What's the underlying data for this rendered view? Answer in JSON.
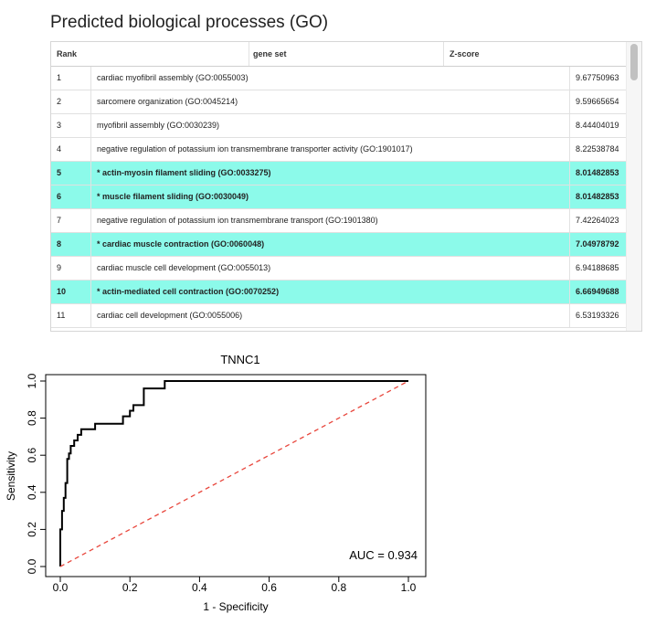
{
  "page": {
    "title": "Predicted biological processes (GO)"
  },
  "table": {
    "columns": [
      "Rank",
      "gene set",
      "Z-score"
    ],
    "rows": [
      {
        "rank": "1",
        "gene_set": "cardiac myofibril assembly (GO:0055003)",
        "z": "9.67750963",
        "highlight": false
      },
      {
        "rank": "2",
        "gene_set": "sarcomere organization (GO:0045214)",
        "z": "9.59665654",
        "highlight": false
      },
      {
        "rank": "3",
        "gene_set": "myofibril assembly (GO:0030239)",
        "z": "8.44404019",
        "highlight": false
      },
      {
        "rank": "4",
        "gene_set": "negative regulation of potassium ion transmembrane transporter activity (GO:1901017)",
        "z": "8.22538784",
        "highlight": false
      },
      {
        "rank": "5",
        "gene_set": "* actin-myosin filament sliding (GO:0033275)",
        "z": "8.01482853",
        "highlight": true
      },
      {
        "rank": "6",
        "gene_set": "* muscle filament sliding (GO:0030049)",
        "z": "8.01482853",
        "highlight": true
      },
      {
        "rank": "7",
        "gene_set": "negative regulation of potassium ion transmembrane transport (GO:1901380)",
        "z": "7.42264023",
        "highlight": false
      },
      {
        "rank": "8",
        "gene_set": "* cardiac muscle contraction (GO:0060048)",
        "z": "7.04978792",
        "highlight": true
      },
      {
        "rank": "9",
        "gene_set": "cardiac muscle cell development (GO:0055013)",
        "z": "6.94188685",
        "highlight": false
      },
      {
        "rank": "10",
        "gene_set": "* actin-mediated cell contraction (GO:0070252)",
        "z": "6.66949688",
        "highlight": true
      },
      {
        "rank": "11",
        "gene_set": "cardiac cell development (GO:0055006)",
        "z": "6.53193326",
        "highlight": false
      }
    ],
    "highlight_color": "#8cfaea"
  },
  "chart_data": {
    "type": "line",
    "title": "TNNC1",
    "xlabel": "1 - Specificity",
    "ylabel": "Sensitivity",
    "xlim": [
      0,
      1
    ],
    "ylim": [
      0,
      1
    ],
    "xticks": [
      "0.0",
      "0.2",
      "0.4",
      "0.6",
      "0.8",
      "1.0"
    ],
    "yticks": [
      "0.0",
      "0.2",
      "0.4",
      "0.6",
      "0.8",
      "1.0"
    ],
    "annotation": "AUC = 0.934",
    "series": [
      {
        "color": "#000000",
        "x": [
          0.0,
          0.0,
          0.005,
          0.005,
          0.01,
          0.01,
          0.015,
          0.015,
          0.02,
          0.02,
          0.025,
          0.025,
          0.03,
          0.03,
          0.04,
          0.04,
          0.05,
          0.05,
          0.06,
          0.06,
          0.1,
          0.1,
          0.18,
          0.18,
          0.2,
          0.2,
          0.21,
          0.21,
          0.24,
          0.24,
          0.3,
          0.3,
          1.0
        ],
        "y": [
          0.0,
          0.2,
          0.2,
          0.3,
          0.3,
          0.37,
          0.37,
          0.45,
          0.45,
          0.58,
          0.58,
          0.61,
          0.61,
          0.65,
          0.65,
          0.68,
          0.68,
          0.71,
          0.71,
          0.74,
          0.74,
          0.77,
          0.77,
          0.81,
          0.81,
          0.84,
          0.84,
          0.87,
          0.87,
          0.96,
          0.96,
          1.0,
          1.0
        ]
      },
      {
        "color": "#e8463c",
        "dashed": true,
        "x": [
          0,
          1
        ],
        "y": [
          0,
          1
        ]
      }
    ]
  }
}
